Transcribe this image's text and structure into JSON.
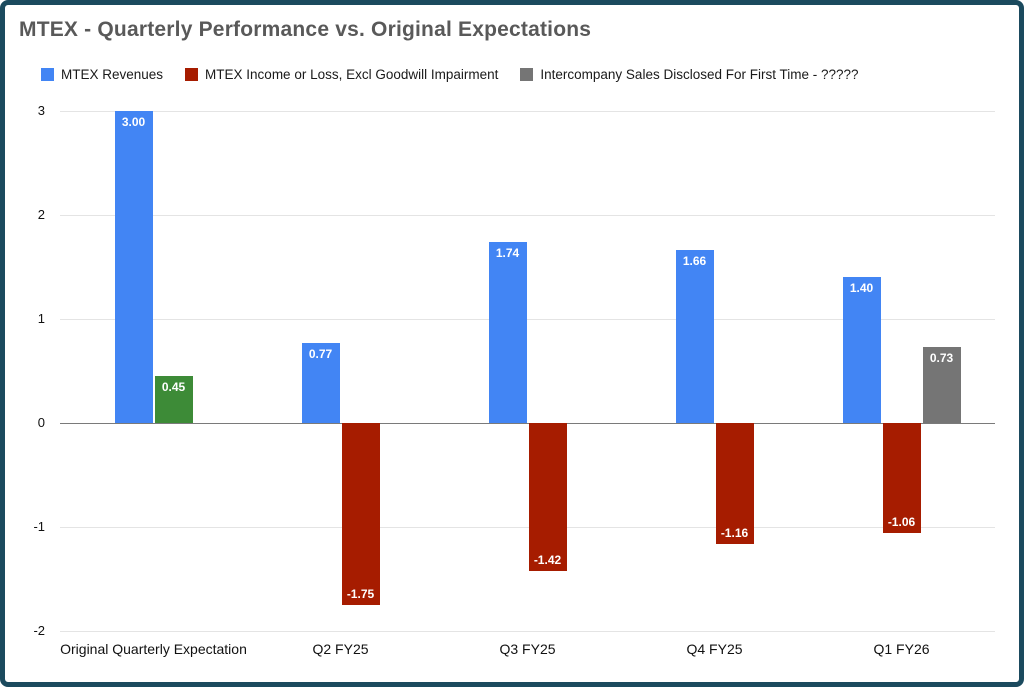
{
  "colors": {
    "frame_border": "#1b4a5e",
    "title_text": "#595959",
    "gridline": "#e4e4e4",
    "zero_line": "#7a7a7a",
    "bar_label_text": "#ffffff"
  },
  "chart_data": {
    "type": "bar",
    "title": "MTEX - Quarterly Performance vs. Original Expectations",
    "categories": [
      "Original Quarterly Expectation",
      "Q2 FY25",
      "Q3 FY25",
      "Q4 FY25",
      "Q1 FY26"
    ],
    "series": [
      {
        "name": "MTEX Revenues",
        "color": "#4285f4",
        "values": [
          3.0,
          0.77,
          1.74,
          1.66,
          1.4
        ]
      },
      {
        "name": "MTEX Income or Loss, Excl Goodwill Impairment",
        "color": "#a61c00",
        "point_colors": [
          "#3d8b37",
          null,
          null,
          null,
          null
        ],
        "values": [
          0.45,
          -1.75,
          -1.42,
          -1.16,
          -1.06
        ]
      },
      {
        "name": "Intercompany Sales Disclosed For First Time - ?????",
        "color": "#757575",
        "values": [
          null,
          null,
          null,
          null,
          0.73
        ]
      }
    ],
    "ylim": [
      -2,
      3
    ],
    "yticks": [
      3,
      2,
      1,
      0,
      -1,
      -2
    ],
    "legend_position": "top",
    "grid": true,
    "value_label_format": "0.00"
  }
}
